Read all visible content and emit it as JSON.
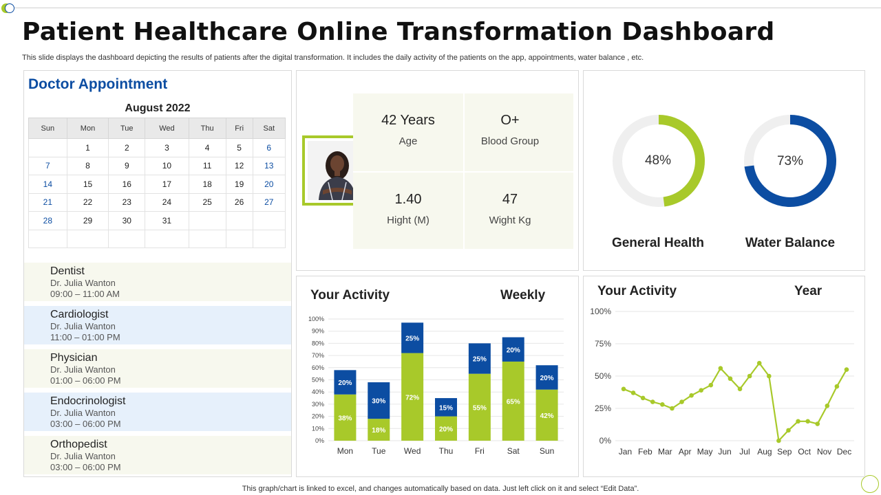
{
  "header": {
    "title": "Patient Healthcare Online Transformation Dashboard",
    "subtitle": "This slide displays the dashboard depicting the  results of patients after the  digital transformation. It includes the  daily activity  of the patients on the app, appointments, water balance , etc."
  },
  "footer": "This graph/chart is linked to excel,  and changes automatically based on data. Just left click on it and select “Edit Data”.",
  "appointment": {
    "title": "Doctor Appointment",
    "month": "August 2022",
    "weekdays": [
      "Sun",
      "Mon",
      "Tue",
      "Wed",
      "Thu",
      "Fri",
      "Sat"
    ],
    "weeks": [
      [
        "",
        "1",
        "2",
        "3",
        "4",
        "5",
        "6"
      ],
      [
        "7",
        "8",
        "9",
        "10",
        "11",
        "12",
        "13"
      ],
      [
        "14",
        "15",
        "16",
        "17",
        "18",
        "19",
        "20"
      ],
      [
        "21",
        "22",
        "23",
        "24",
        "25",
        "26",
        "27"
      ],
      [
        "28",
        "29",
        "30",
        "31",
        "",
        "",
        ""
      ],
      [
        "",
        "",
        "",
        "",
        "",
        "",
        ""
      ]
    ],
    "items": [
      {
        "specialty": "Dentist",
        "doctor": "Dr. Julia Wanton",
        "time": "09:00 – 11:00 AM"
      },
      {
        "specialty": "Cardiologist",
        "doctor": "Dr. Julia Wanton",
        "time": "11:00 – 01:00 PM"
      },
      {
        "specialty": "Physician",
        "doctor": "Dr. Julia Wanton",
        "time": "01:00 – 06:00 PM"
      },
      {
        "specialty": "Endocrinologist",
        "doctor": "Dr. Julia Wanton",
        "time": "03:00 – 06:00 PM"
      },
      {
        "specialty": "Orthopedist",
        "doctor": "Dr. Julia Wanton",
        "time": "03:00 – 06:00 PM"
      }
    ]
  },
  "profile": {
    "age_value": "42 Years",
    "age_label": "Age",
    "blood_value": "O+",
    "blood_label": "Blood Group",
    "height_value": "1.40",
    "height_label": "Hight (M)",
    "weight_value": "47",
    "weight_label": "Wight Kg"
  },
  "gauges": {
    "general_health": {
      "label": "General Health",
      "percent": 48,
      "text": "48%",
      "color": "#a8c92a"
    },
    "water_balance": {
      "label": "Water Balance",
      "percent": 73,
      "text": "73%",
      "color": "#0c4da2"
    },
    "track_color": "#efefef"
  },
  "weekly_activity": {
    "title": "Your Activity",
    "period": "Weekly"
  },
  "yearly_activity": {
    "title": "Your Activity",
    "period": "Year"
  },
  "colors": {
    "green": "#a8c92a",
    "blue": "#0c4da2"
  },
  "chart_data": [
    {
      "type": "bar",
      "stacked": true,
      "categories": [
        "Mon",
        "Tue",
        "Wed",
        "Thu",
        "Fri",
        "Sat",
        "Sun"
      ],
      "series": [
        {
          "values": [
            38,
            18,
            72,
            20,
            55,
            65,
            42
          ]
        },
        {
          "values": [
            20,
            30,
            25,
            15,
            25,
            20,
            20
          ]
        }
      ],
      "ylim": [
        0,
        100
      ],
      "yticks": [
        "0%",
        "10%",
        "20%",
        "30%",
        "40%",
        "50%",
        "60%",
        "70%",
        "80%",
        "90%",
        "100%"
      ],
      "data_labels": true,
      "grid": true
    },
    {
      "type": "line",
      "x_ticks": [
        "Jan",
        "Feb",
        "Mar",
        "Apr",
        "May",
        "Jun",
        "Jul",
        "Aug",
        "Sep",
        "Oct",
        "Nov",
        "Dec"
      ],
      "values": [
        40,
        37,
        33,
        30,
        28,
        25,
        30,
        35,
        39,
        43,
        56,
        48,
        40,
        50,
        60,
        50,
        0,
        8,
        15,
        15,
        13,
        27,
        42,
        55
      ],
      "ylim": [
        0,
        100
      ],
      "yticks": [
        "0%",
        "25%",
        "50%",
        "75%",
        "100%"
      ],
      "grid": true
    }
  ]
}
